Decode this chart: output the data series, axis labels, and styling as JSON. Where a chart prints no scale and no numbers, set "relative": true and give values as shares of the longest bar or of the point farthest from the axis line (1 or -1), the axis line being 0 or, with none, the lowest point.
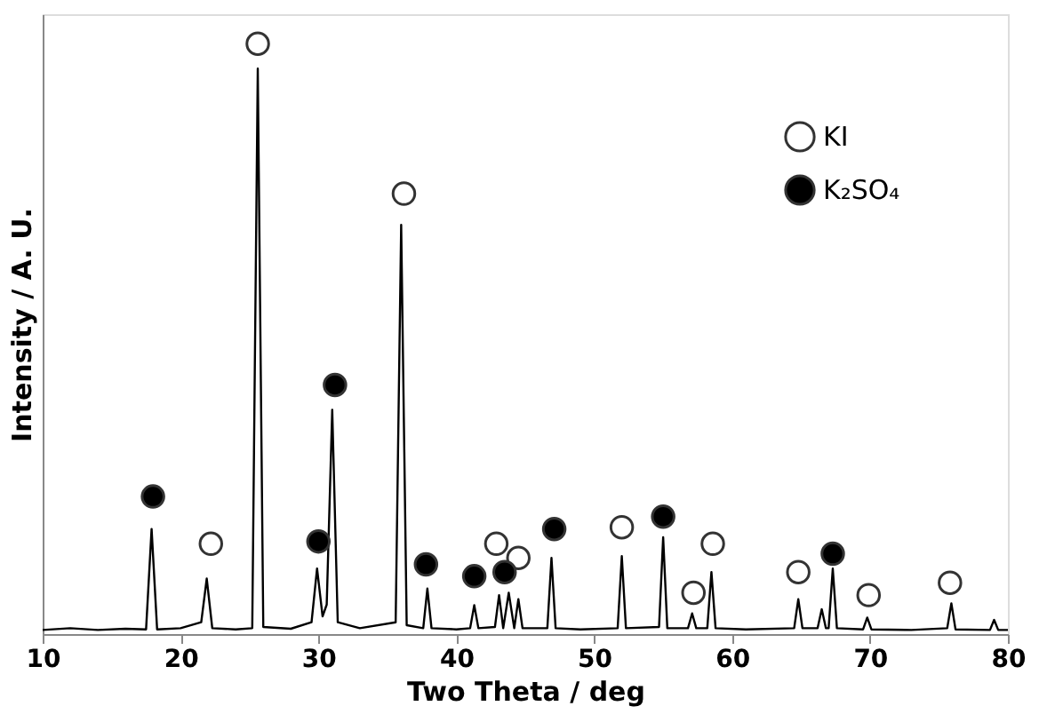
{
  "chart_data": {
    "type": "line",
    "relative": true,
    "xlabel": "Two Theta / deg",
    "ylabel": "Intensity / A. U.",
    "xlim": [
      10,
      80
    ],
    "xticks": [
      10,
      20,
      30,
      40,
      50,
      60,
      70,
      80
    ],
    "grid": false,
    "legend": "top right",
    "series": [
      {
        "marker": "none",
        "color": "#000000",
        "x": [
          10,
          12,
          14,
          16,
          17.5,
          17.9,
          18.3,
          20,
          21.5,
          21.9,
          22.3,
          24,
          25.2,
          25.6,
          26.0,
          28,
          29.5,
          29.9,
          30.3,
          30.6,
          31.0,
          31.4,
          33,
          35.6,
          36.0,
          36.4,
          37.6,
          37.9,
          38.2,
          40,
          41.0,
          41.3,
          41.6,
          42.8,
          43.1,
          43.4,
          43.8,
          44.2,
          44.5,
          44.8,
          46.6,
          46.9,
          47.2,
          49,
          51.7,
          52.0,
          52.3,
          54.7,
          55.0,
          55.3,
          56.8,
          57.1,
          57.4,
          58.2,
          58.5,
          58.8,
          61,
          64.5,
          64.8,
          65.1,
          66.2,
          66.5,
          66.8,
          67.0,
          67.3,
          67.6,
          69.5,
          69.8,
          70.1,
          73,
          75.6,
          75.9,
          76.2,
          78.7,
          79.0,
          79.3,
          80
        ],
        "values": [
          0.007,
          0.01,
          0.007,
          0.009,
          0.008,
          0.178,
          0.008,
          0.01,
          0.02,
          0.094,
          0.01,
          0.008,
          0.01,
          0.958,
          0.012,
          0.009,
          0.02,
          0.111,
          0.03,
          0.05,
          0.38,
          0.02,
          0.01,
          0.02,
          0.693,
          0.015,
          0.01,
          0.077,
          0.01,
          0.008,
          0.01,
          0.049,
          0.01,
          0.012,
          0.066,
          0.01,
          0.07,
          0.01,
          0.059,
          0.01,
          0.01,
          0.129,
          0.01,
          0.008,
          0.01,
          0.132,
          0.01,
          0.012,
          0.164,
          0.01,
          0.01,
          0.035,
          0.01,
          0.01,
          0.105,
          0.01,
          0.008,
          0.01,
          0.059,
          0.01,
          0.01,
          0.042,
          0.01,
          0.01,
          0.111,
          0.01,
          0.008,
          0.028,
          0.008,
          0.007,
          0.01,
          0.052,
          0.008,
          0.007,
          0.024,
          0.007,
          0.007
        ]
      },
      {
        "type": "scatter",
        "marker": "circle",
        "name": "KI",
        "color": "#ffffff",
        "x": [
          22.2,
          25.6,
          36.2,
          42.9,
          44.5,
          52.0,
          57.2,
          58.6,
          64.8,
          69.9,
          75.8
        ],
        "values": [
          0.153,
          1.0,
          0.746,
          0.153,
          0.129,
          0.181,
          0.07,
          0.153,
          0.105,
          0.066,
          0.087
        ]
      },
      {
        "type": "scatter",
        "marker": "circle",
        "name": "K₂SO₄",
        "color": "#000000",
        "x": [
          18.0,
          30.0,
          31.2,
          37.8,
          41.3,
          43.5,
          47.1,
          55.0,
          67.3
        ],
        "values": [
          0.233,
          0.157,
          0.422,
          0.118,
          0.098,
          0.105,
          0.178,
          0.199,
          0.136
        ]
      }
    ]
  }
}
